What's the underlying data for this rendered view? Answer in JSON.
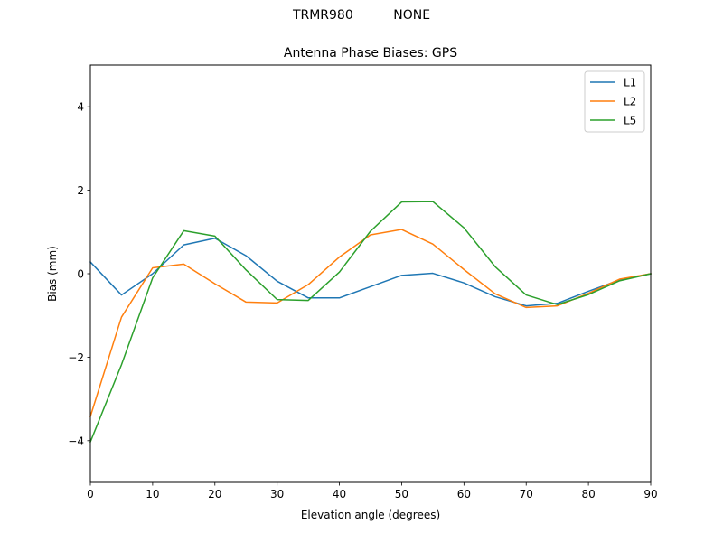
{
  "header": {
    "suptitle": "TRMR980          NONE"
  },
  "chart_data": {
    "type": "line",
    "title": "Antenna Phase Biases: GPS",
    "xlabel": "Elevation angle (degrees)",
    "ylabel": "Bias (mm)",
    "xlim": [
      0,
      90
    ],
    "ylim": [
      -5,
      5
    ],
    "xticks": [
      0,
      10,
      20,
      30,
      40,
      50,
      60,
      70,
      80,
      90
    ],
    "yticks": [
      -4,
      -2,
      0,
      2,
      4
    ],
    "ytick_labels": [
      "−4",
      "−2",
      "0",
      "2",
      "4"
    ],
    "grid": false,
    "legend_position": "top-right",
    "x": [
      0,
      5,
      10,
      15,
      20,
      25,
      30,
      35,
      40,
      45,
      50,
      55,
      60,
      65,
      70,
      75,
      80,
      85,
      90
    ],
    "series": [
      {
        "name": "L1",
        "color": "#1f77b4",
        "values": [
          0.28,
          -0.51,
          0.0,
          0.69,
          0.85,
          0.43,
          -0.18,
          -0.58,
          -0.58,
          -0.31,
          -0.04,
          0.01,
          -0.22,
          -0.55,
          -0.77,
          -0.71,
          -0.42,
          -0.15,
          0.0
        ]
      },
      {
        "name": "L2",
        "color": "#ff7f0e",
        "values": [
          -3.42,
          -1.04,
          0.14,
          0.23,
          -0.24,
          -0.68,
          -0.7,
          -0.26,
          0.4,
          0.93,
          1.06,
          0.71,
          0.1,
          -0.48,
          -0.81,
          -0.77,
          -0.47,
          -0.13,
          0.0
        ]
      },
      {
        "name": "L5",
        "color": "#2ca02c",
        "values": [
          -4.03,
          -2.18,
          -0.1,
          1.03,
          0.9,
          0.09,
          -0.62,
          -0.64,
          0.04,
          1.02,
          1.72,
          1.73,
          1.1,
          0.17,
          -0.51,
          -0.74,
          -0.5,
          -0.17,
          0.0
        ]
      }
    ]
  }
}
